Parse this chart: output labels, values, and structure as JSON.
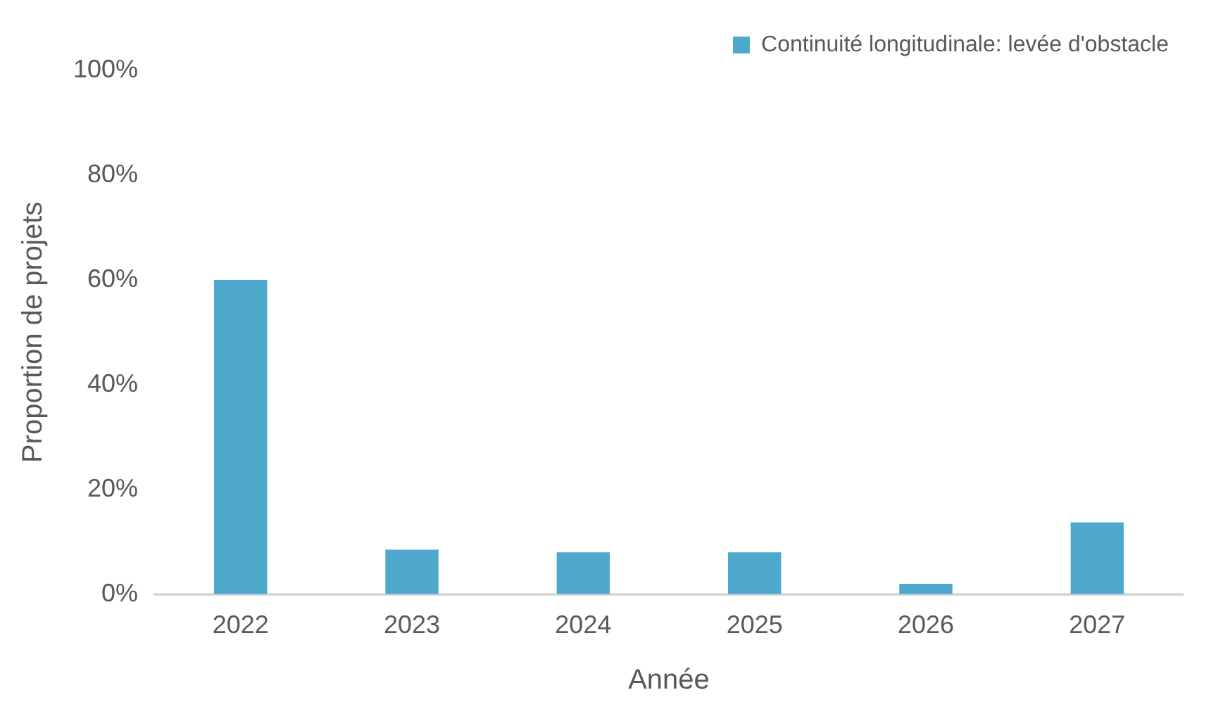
{
  "chart_data": {
    "type": "bar",
    "xlabel": "Année",
    "ylabel": "Proportion de projets",
    "categories": [
      "2022",
      "2023",
      "2024",
      "2025",
      "2026",
      "2027"
    ],
    "series": [
      {
        "name": "Continuité longitudinale: levée d'obstacle",
        "color": "#4ea8cc",
        "values": [
          60,
          8.5,
          8,
          8,
          2,
          13.7
        ]
      }
    ],
    "ylim": [
      0,
      100
    ],
    "yticks": [
      {
        "value": 0,
        "label": "0%"
      },
      {
        "value": 20,
        "label": "20%"
      },
      {
        "value": 40,
        "label": "40%"
      },
      {
        "value": 60,
        "label": "60%"
      },
      {
        "value": 80,
        "label": "80%"
      },
      {
        "value": 100,
        "label": "100%"
      }
    ],
    "grid": false,
    "legend": "top right"
  }
}
